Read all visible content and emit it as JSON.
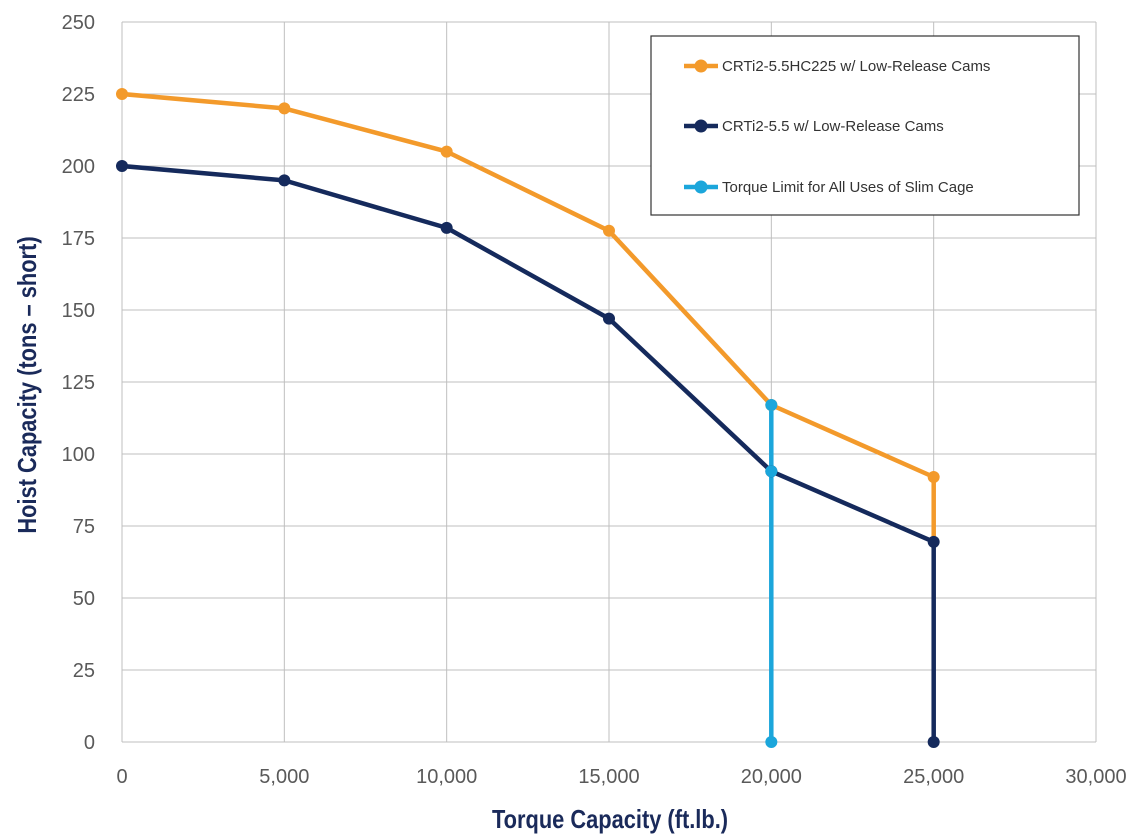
{
  "chart_data": {
    "type": "line",
    "xlabel": "Torque Capacity (ft.lb.)",
    "ylabel": "Hoist Capacity (tons – short)",
    "xlim": [
      0,
      30000
    ],
    "ylim": [
      0,
      250
    ],
    "x_ticks": [
      0,
      5000,
      10000,
      15000,
      20000,
      25000,
      30000
    ],
    "x_tick_labels": [
      "0",
      "5,000",
      "10,000",
      "15,000",
      "20,000",
      "25,000",
      "30,000"
    ],
    "y_ticks": [
      0,
      25,
      50,
      75,
      100,
      125,
      150,
      175,
      200,
      225,
      250
    ],
    "y_tick_labels": [
      "0",
      "25",
      "50",
      "75",
      "100",
      "125",
      "150",
      "175",
      "200",
      "225",
      "250"
    ],
    "grid": true,
    "legend_position": "top-right",
    "series": [
      {
        "name": "CRTi2-5.5HC225 w/ Low-Release Cams",
        "color": "#F39A2B",
        "points": [
          [
            0,
            225
          ],
          [
            5000,
            220
          ],
          [
            10000,
            205
          ],
          [
            15000,
            177.5
          ],
          [
            20000,
            117
          ],
          [
            25000,
            92
          ],
          [
            25000,
            70
          ]
        ],
        "markers": [
          [
            0,
            225
          ],
          [
            5000,
            220
          ],
          [
            10000,
            205
          ],
          [
            15000,
            177.5
          ],
          [
            20000,
            117
          ],
          [
            25000,
            92
          ]
        ]
      },
      {
        "name": "CRTi2-5.5 w/ Low-Release Cams",
        "color": "#152A5C",
        "points": [
          [
            0,
            200
          ],
          [
            5000,
            195
          ],
          [
            10000,
            178.5
          ],
          [
            15000,
            147
          ],
          [
            20000,
            94
          ],
          [
            25000,
            69.5
          ],
          [
            25000,
            0
          ]
        ],
        "markers": [
          [
            0,
            200
          ],
          [
            5000,
            195
          ],
          [
            10000,
            178.5
          ],
          [
            15000,
            147
          ],
          [
            20000,
            94
          ],
          [
            25000,
            69.5
          ],
          [
            25000,
            0
          ]
        ]
      },
      {
        "name": "Torque Limit for All Uses of Slim Cage",
        "color": "#1BA6DB",
        "points": [
          [
            20000,
            0
          ],
          [
            20000,
            117
          ]
        ],
        "markers": [
          [
            20000,
            0
          ],
          [
            20000,
            94
          ],
          [
            20000,
            117
          ]
        ]
      }
    ]
  }
}
